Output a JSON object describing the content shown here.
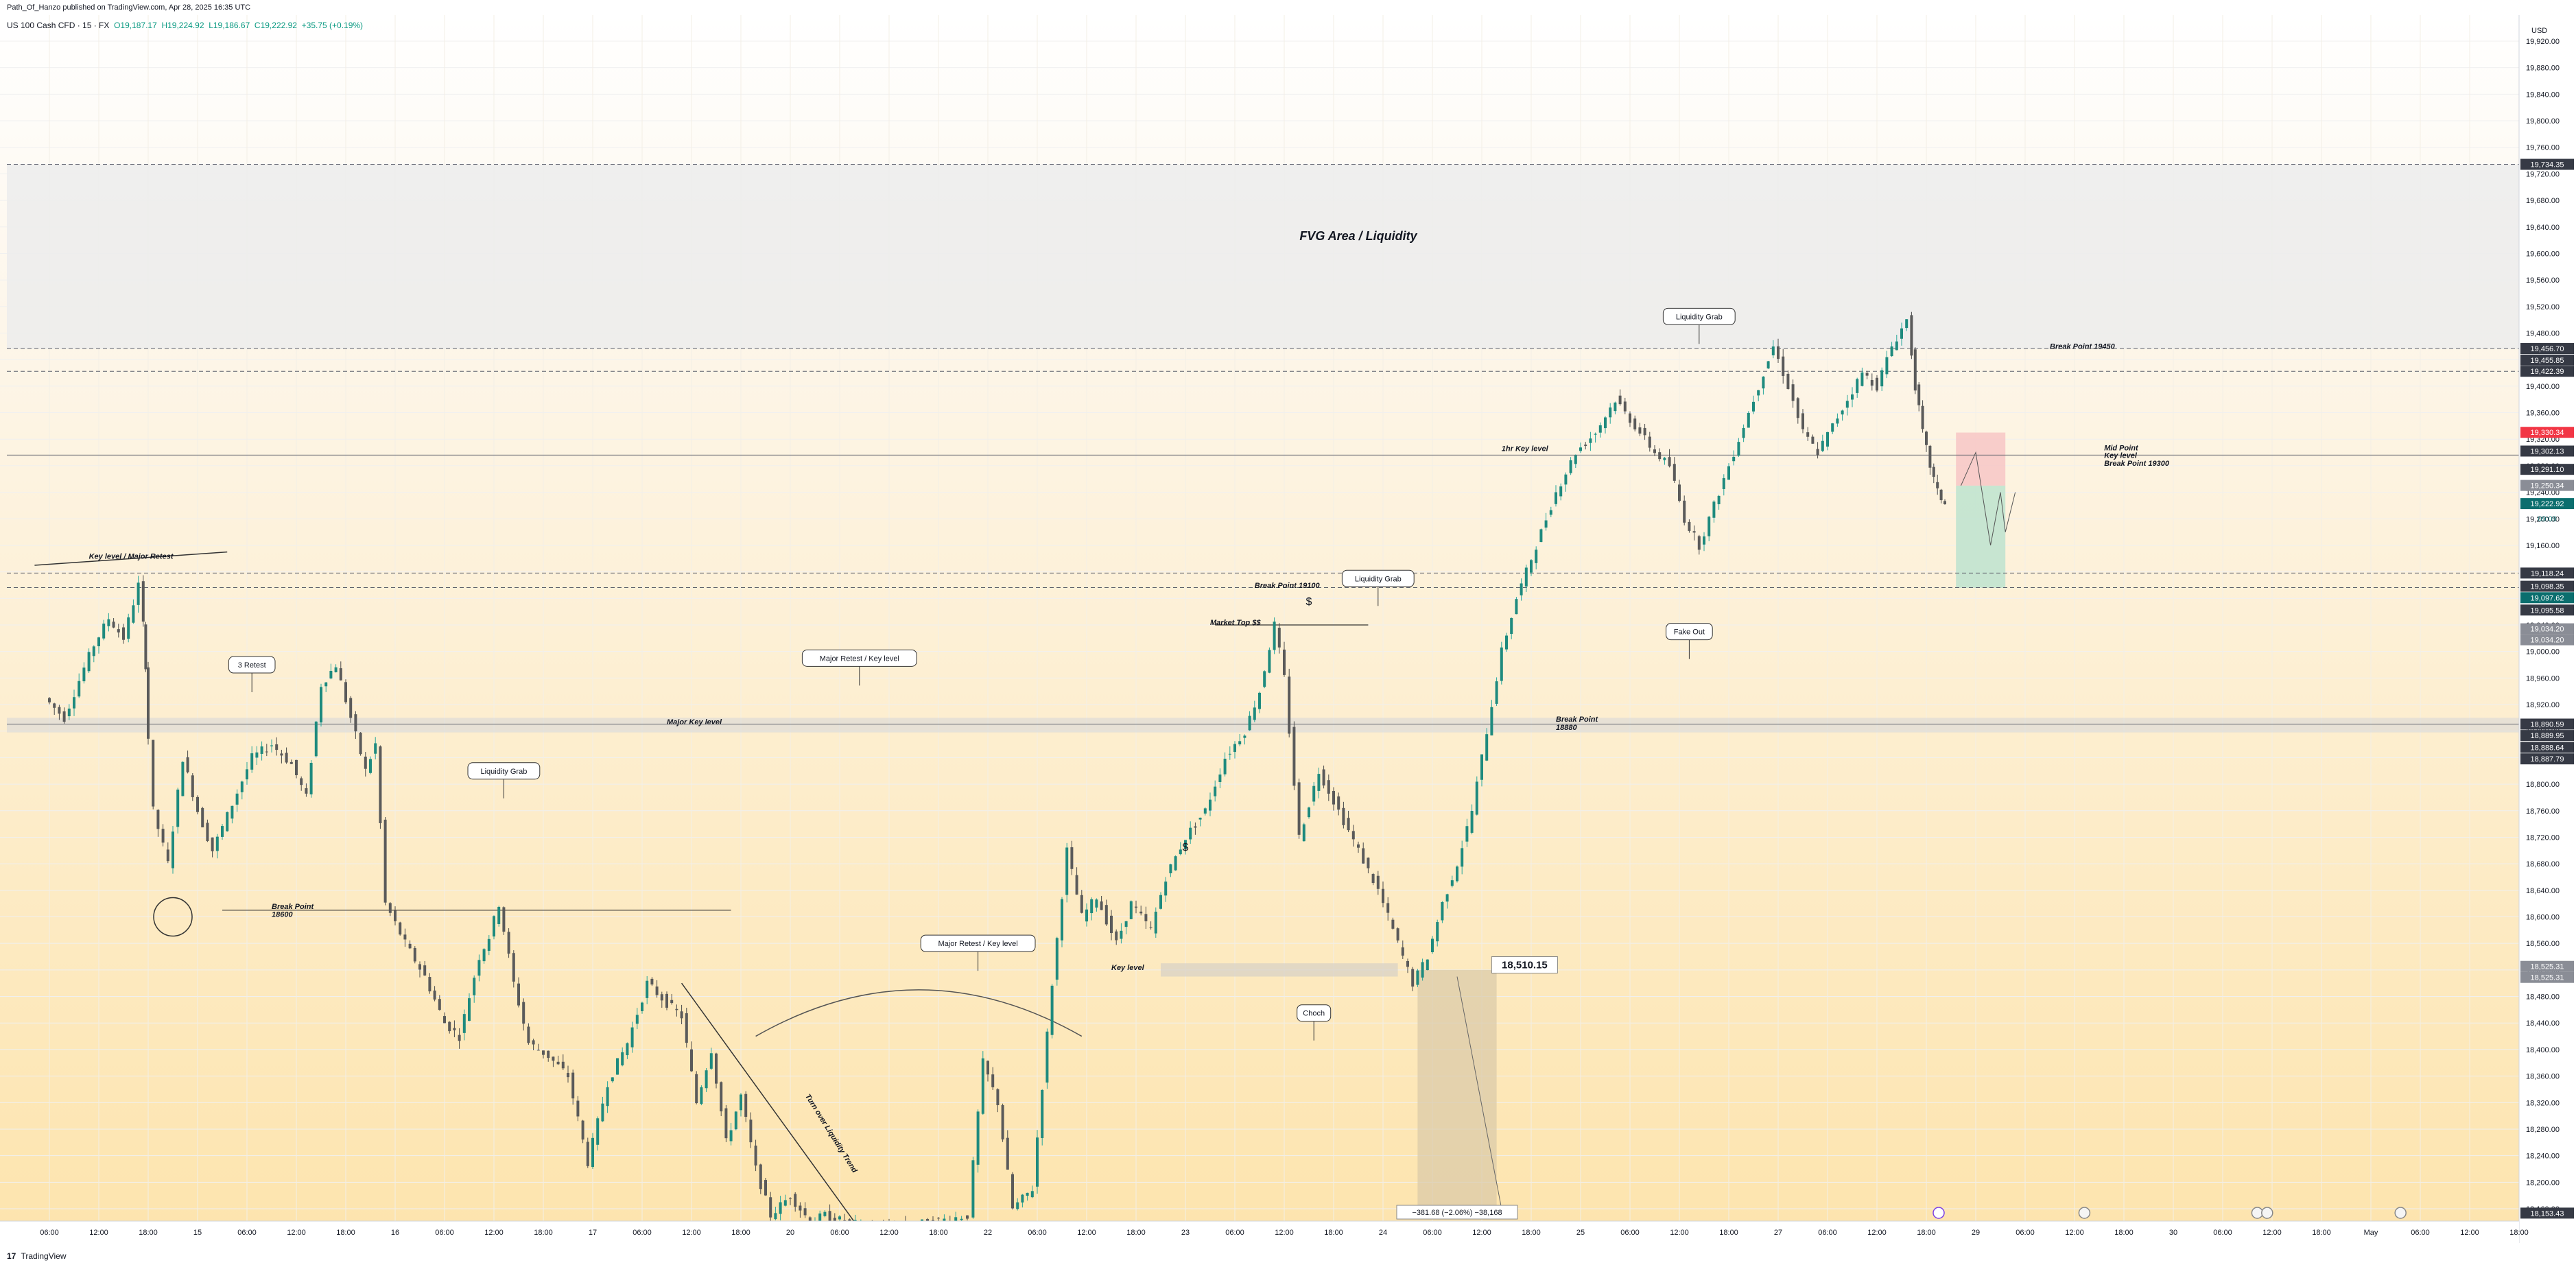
{
  "header": {
    "publisher_line": "Path_Of_Hanzo published on TradingView.com, Apr 28, 2025 16:35 UTC"
  },
  "legend": {
    "symbol": "US 100 Cash CFD · 15 · FX",
    "open": "O19,187.17",
    "high": "H19,224.92",
    "low": "L19,186.67",
    "close": "C19,222.92",
    "change": "+35.75 (+0.19%)"
  },
  "footer": {
    "logo_text": "TradingView",
    "logo_glyph": "17"
  },
  "colors": {
    "up": "#089981",
    "down": "#f23645",
    "label_dark": "#363a45",
    "label_grey": "#787b86",
    "fvg_band": "#ececec",
    "short_stop": "#f7c6c6",
    "short_target": "#bde3cf",
    "measure_box": "#d8c9a8",
    "bg_top": "#fdf6ea",
    "bg_bottom": "#fde6b2"
  },
  "chart_data": {
    "type": "candlestick",
    "currency": "USD",
    "ylim": [
      18130,
      19940
    ],
    "y_ticks": [
      18160,
      18200,
      18240,
      18280,
      18320,
      18360,
      18400,
      18440,
      18480,
      18520,
      18560,
      18600,
      18640,
      18680,
      18720,
      18760,
      18800,
      18840,
      18880,
      18920,
      18960,
      19000,
      19040,
      19080,
      19120,
      19160,
      19200,
      19240,
      19280,
      19320,
      19360,
      19400,
      19440,
      19480,
      19520,
      19560,
      19600,
      19640,
      19680,
      19720,
      19760,
      19800,
      19840,
      19880,
      19920
    ],
    "x_axis_labels": [
      {
        "t": 0,
        "label": "06:00"
      },
      {
        "t": 1,
        "label": "12:00"
      },
      {
        "t": 2,
        "label": "18:00"
      },
      {
        "t": 3,
        "label": "15"
      },
      {
        "t": 4,
        "label": "06:00"
      },
      {
        "t": 5,
        "label": "12:00"
      },
      {
        "t": 6,
        "label": "18:00"
      },
      {
        "t": 7,
        "label": "16"
      },
      {
        "t": 8,
        "label": "06:00"
      },
      {
        "t": 9,
        "label": "12:00"
      },
      {
        "t": 10,
        "label": "18:00"
      },
      {
        "t": 11,
        "label": "17"
      },
      {
        "t": 12,
        "label": "06:00"
      },
      {
        "t": 13,
        "label": "12:00"
      },
      {
        "t": 14,
        "label": "18:00"
      },
      {
        "t": 15,
        "label": "20"
      },
      {
        "t": 16,
        "label": "06:00"
      },
      {
        "t": 17,
        "label": "12:00"
      },
      {
        "t": 18,
        "label": "18:00"
      },
      {
        "t": 19,
        "label": "22"
      },
      {
        "t": 20,
        "label": "06:00"
      },
      {
        "t": 21,
        "label": "12:00"
      },
      {
        "t": 22,
        "label": "18:00"
      },
      {
        "t": 23,
        "label": "23"
      },
      {
        "t": 24,
        "label": "06:00"
      },
      {
        "t": 25,
        "label": "12:00"
      },
      {
        "t": 26,
        "label": "18:00"
      },
      {
        "t": 27,
        "label": "24"
      },
      {
        "t": 28,
        "label": "06:00"
      },
      {
        "t": 29,
        "label": "12:00"
      },
      {
        "t": 30,
        "label": "18:00"
      },
      {
        "t": 31,
        "label": "25"
      },
      {
        "t": 32,
        "label": "06:00"
      },
      {
        "t": 33,
        "label": "12:00"
      },
      {
        "t": 34,
        "label": "18:00"
      },
      {
        "t": 35,
        "label": "27"
      },
      {
        "t": 36,
        "label": "06:00"
      },
      {
        "t": 37,
        "label": "12:00"
      },
      {
        "t": 38,
        "label": "18:00"
      },
      {
        "t": 39,
        "label": "29"
      },
      {
        "t": 40,
        "label": "06:00"
      },
      {
        "t": 41,
        "label": "12:00"
      },
      {
        "t": 42,
        "label": "18:00"
      },
      {
        "t": 43,
        "label": "30"
      },
      {
        "t": 44,
        "label": "06:00"
      },
      {
        "t": 45,
        "label": "12:00"
      },
      {
        "t": 46,
        "label": "18:00"
      },
      {
        "t": 47,
        "label": "May"
      },
      {
        "t": 48,
        "label": "06:00"
      },
      {
        "t": 49,
        "label": "12:00"
      },
      {
        "t": 50,
        "label": "18:00"
      }
    ],
    "price_path": [
      [
        0,
        18930
      ],
      [
        0.4,
        18900
      ],
      [
        0.8,
        18975
      ],
      [
        1,
        19010
      ],
      [
        1.3,
        19050
      ],
      [
        1.6,
        19020
      ],
      [
        1.9,
        19100
      ],
      [
        2,
        18980
      ],
      [
        2.2,
        18760
      ],
      [
        2.5,
        18680
      ],
      [
        2.8,
        18840
      ],
      [
        3.1,
        18760
      ],
      [
        3.4,
        18700
      ],
      [
        3.8,
        18770
      ],
      [
        4.2,
        18840
      ],
      [
        4.6,
        18860
      ],
      [
        5,
        18830
      ],
      [
        5.3,
        18780
      ],
      [
        5.6,
        18950
      ],
      [
        5.9,
        18980
      ],
      [
        6.2,
        18900
      ],
      [
        6.5,
        18820
      ],
      [
        6.7,
        18860
      ],
      [
        6.9,
        18620
      ],
      [
        7.3,
        18560
      ],
      [
        7.7,
        18510
      ],
      [
        8.1,
        18440
      ],
      [
        8.4,
        18420
      ],
      [
        8.8,
        18540
      ],
      [
        9,
        18570
      ],
      [
        9.2,
        18620
      ],
      [
        9.5,
        18500
      ],
      [
        9.8,
        18410
      ],
      [
        10.2,
        18390
      ],
      [
        10.6,
        18360
      ],
      [
        11,
        18230
      ],
      [
        11.4,
        18350
      ],
      [
        11.8,
        18410
      ],
      [
        12.2,
        18500
      ],
      [
        12.6,
        18470
      ],
      [
        12.9,
        18450
      ],
      [
        13.2,
        18320
      ],
      [
        13.5,
        18400
      ],
      [
        13.8,
        18260
      ],
      [
        14.1,
        18330
      ],
      [
        14.4,
        18220
      ],
      [
        14.7,
        18150
      ],
      [
        15.1,
        18180
      ],
      [
        15.5,
        18140
      ],
      [
        15.8,
        18150
      ],
      [
        16.2,
        18140
      ],
      [
        17,
        18130
      ],
      [
        18,
        18140
      ],
      [
        18.7,
        18150
      ],
      [
        19,
        18380
      ],
      [
        19.3,
        18320
      ],
      [
        19.6,
        18160
      ],
      [
        20,
        18190
      ],
      [
        20.4,
        18500
      ],
      [
        20.7,
        18700
      ],
      [
        21,
        18600
      ],
      [
        21.3,
        18630
      ],
      [
        21.7,
        18560
      ],
      [
        22,
        18620
      ],
      [
        22.4,
        18580
      ],
      [
        22.7,
        18660
      ],
      [
        23.1,
        18720
      ],
      [
        23.5,
        18760
      ],
      [
        23.9,
        18840
      ],
      [
        24.3,
        18880
      ],
      [
        24.6,
        18940
      ],
      [
        24.9,
        19040
      ],
      [
        25.1,
        18960
      ],
      [
        25.4,
        18720
      ],
      [
        25.8,
        18820
      ],
      [
        26.2,
        18760
      ],
      [
        26.6,
        18700
      ],
      [
        27,
        18640
      ],
      [
        27.4,
        18560
      ],
      [
        27.7,
        18500
      ],
      [
        28,
        18540
      ],
      [
        28.3,
        18620
      ],
      [
        28.6,
        18680
      ],
      [
        28.9,
        18760
      ],
      [
        29.2,
        18880
      ],
      [
        29.5,
        19000
      ],
      [
        29.8,
        19080
      ],
      [
        30.2,
        19160
      ],
      [
        30.6,
        19240
      ],
      [
        31,
        19300
      ],
      [
        31.4,
        19330
      ],
      [
        31.8,
        19380
      ],
      [
        32.2,
        19340
      ],
      [
        32.6,
        19300
      ],
      [
        32.9,
        19280
      ],
      [
        33.2,
        19200
      ],
      [
        33.5,
        19160
      ],
      [
        33.8,
        19220
      ],
      [
        34.1,
        19280
      ],
      [
        34.4,
        19340
      ],
      [
        34.7,
        19400
      ],
      [
        35,
        19460
      ],
      [
        35.3,
        19400
      ],
      [
        35.6,
        19330
      ],
      [
        35.9,
        19300
      ],
      [
        36.2,
        19340
      ],
      [
        36.5,
        19380
      ],
      [
        36.8,
        19420
      ],
      [
        37.1,
        19400
      ],
      [
        37.4,
        19460
      ],
      [
        37.7,
        19500
      ],
      [
        37.85,
        19400
      ],
      [
        38,
        19330
      ],
      [
        38.15,
        19280
      ],
      [
        38.3,
        19240
      ],
      [
        38.45,
        19222.92
      ]
    ],
    "levels": [
      {
        "price": 19734.35,
        "style": "dashed"
      },
      {
        "price": 19456.7,
        "style": "dashed"
      },
      {
        "price": 19422.39,
        "style": "dashed"
      },
      {
        "price": 19296.0,
        "style": "solid"
      },
      {
        "price": 19118.24,
        "style": "dashed"
      },
      {
        "price": 19096.35,
        "style": "dashed"
      },
      {
        "price": 18890.59,
        "style": "solid"
      }
    ],
    "price_labels": [
      {
        "price": 19734.35,
        "text": "19,734.35",
        "kind": "dark"
      },
      {
        "price": 19456.7,
        "text": "19,456.70",
        "kind": "dark"
      },
      {
        "price": 19455.85,
        "text": "19,455.85",
        "kind": "dark"
      },
      {
        "price": 19422.39,
        "text": "19,422.39",
        "kind": "dark"
      },
      {
        "price": 19330.34,
        "text": "19,330.34",
        "kind": "red"
      },
      {
        "price": 19302.13,
        "text": "19,302.13",
        "kind": "dark"
      },
      {
        "price": 19291.1,
        "text": "19,291.10",
        "kind": "dark"
      },
      {
        "price": 19250.34,
        "text": "19,250.34",
        "kind": "grey"
      },
      {
        "price": 19222.92,
        "text": "19,222.92",
        "kind": "teal"
      },
      {
        "price": 19118.24,
        "text": "19,118.24",
        "kind": "dark"
      },
      {
        "price": 19098.35,
        "text": "19,098.35",
        "kind": "dark"
      },
      {
        "price": 19097.62,
        "text": "19,097.62",
        "kind": "teal"
      },
      {
        "price": 19095.58,
        "text": "19,095.58",
        "kind": "dark"
      },
      {
        "price": 19034.2,
        "text": "19,034.20",
        "kind": "grey"
      },
      {
        "price": 19034.2,
        "text": "19,034.20",
        "kind": "grey"
      },
      {
        "price": 18890.59,
        "text": "18,890.59",
        "kind": "dark"
      },
      {
        "price": 18889.95,
        "text": "18,889.95",
        "kind": "dark"
      },
      {
        "price": 18888.64,
        "text": "18,888.64",
        "kind": "dark"
      },
      {
        "price": 18887.79,
        "text": "18,887.79",
        "kind": "dark"
      },
      {
        "price": 18525.31,
        "text": "18,525.31",
        "kind": "grey"
      },
      {
        "price": 18525.31,
        "text": "18,525.31",
        "kind": "grey"
      },
      {
        "price": 18153.43,
        "text": "18,153.43",
        "kind": "dark"
      }
    ],
    "countdown": "09:09",
    "annotations": [
      {
        "text": "FVG Area / Liquidity",
        "t": 26.5,
        "price": 19620,
        "style": "title"
      },
      {
        "text": "Key level / Major Retest",
        "t": 0.8,
        "price": 19140,
        "style": "italic"
      },
      {
        "text": "Major Key level",
        "t": 12.5,
        "price": 18890,
        "style": "italic"
      },
      {
        "text": "Break Point",
        "t": 4.5,
        "price": 18612,
        "style": "italic"
      },
      {
        "text": "18600",
        "t": 4.5,
        "price": 18600,
        "style": "italic"
      },
      {
        "text": "Key level",
        "t": 21.5,
        "price": 18520,
        "style": "italic"
      },
      {
        "text": "Market Top $$",
        "t": 23.5,
        "price": 19040,
        "style": "italic"
      },
      {
        "text": "Break Point 19100",
        "t": 24.4,
        "price": 19096,
        "style": "italic"
      },
      {
        "text": "1hr Key level",
        "t": 29.4,
        "price": 19302,
        "style": "italic"
      },
      {
        "text": "Break Point",
        "t": 30.5,
        "price": 18894,
        "style": "italic"
      },
      {
        "text": "18880",
        "t": 30.5,
        "price": 18882,
        "style": "italic"
      },
      {
        "text": "Break Point 19450",
        "t": 40.5,
        "price": 19456,
        "style": "italic"
      },
      {
        "text": "Mid Point",
        "t": 41.6,
        "price": 19303,
        "style": "italic"
      },
      {
        "text": "Key level",
        "t": 41.6,
        "price": 19292,
        "style": "italic"
      },
      {
        "text": "Break Point 19300",
        "t": 41.6,
        "price": 19280,
        "style": "italic"
      },
      {
        "text": "$",
        "t": 23,
        "price": 18700,
        "style": "plain"
      },
      {
        "text": "$",
        "t": 25.5,
        "price": 19070,
        "style": "plain"
      },
      {
        "text": "Turn over Liquidity Trend",
        "t": 15.3,
        "price": 18330,
        "style": "rotated"
      }
    ],
    "callouts": [
      {
        "text": "3 Retest",
        "t": 4.1,
        "price": 18980
      },
      {
        "text": "Major Retest / Key level",
        "t": 16.4,
        "price": 18990
      },
      {
        "text": "Liquidity Grab",
        "t": 9.2,
        "price": 18820
      },
      {
        "text": "Major Retest / Key level",
        "t": 18.8,
        "price": 18560
      },
      {
        "text": "Choch",
        "t": 25.6,
        "price": 18455
      },
      {
        "text": "Liquidity Grab",
        "t": 26.9,
        "price": 19110
      },
      {
        "text": "Liquidity Grab",
        "t": 33.4,
        "price": 19505
      },
      {
        "text": "Fake Out",
        "t": 33.2,
        "price": 19030
      }
    ],
    "measure": {
      "text": "−381.68 (−2.06%) −38,168",
      "value_label": "18,510.15"
    }
  }
}
